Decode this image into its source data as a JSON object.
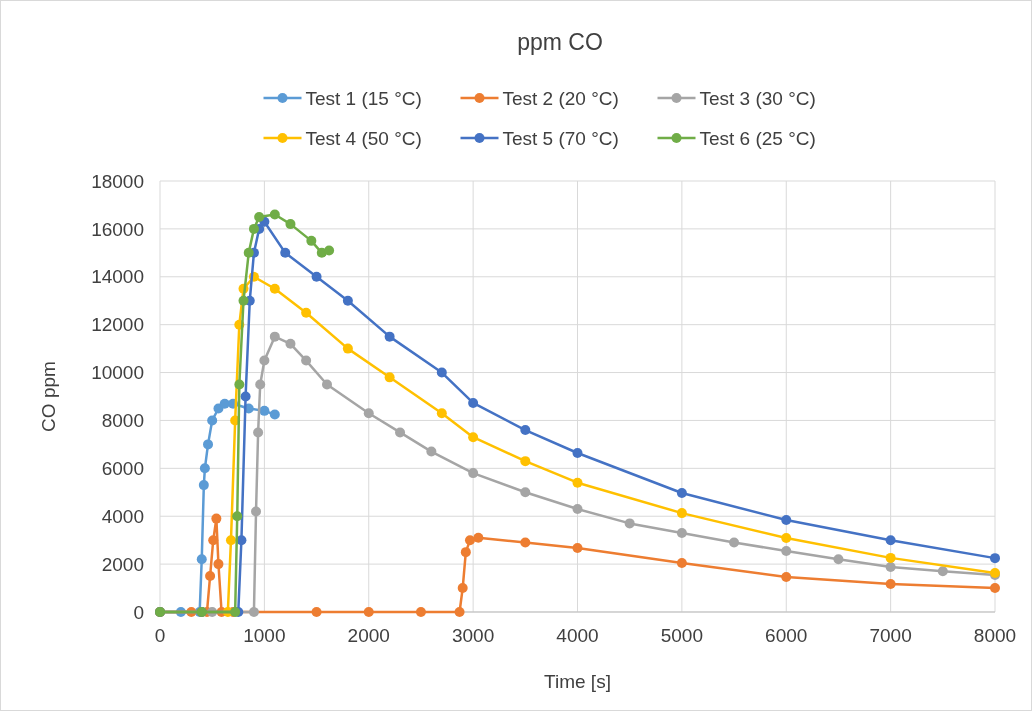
{
  "chart_data": {
    "type": "line",
    "title": "ppm CO",
    "xlabel": "Time [s]",
    "ylabel": "CO ppm",
    "xlim": [
      0,
      8000
    ],
    "xticks": [
      0,
      1000,
      2000,
      3000,
      4000,
      5000,
      6000,
      7000,
      8000
    ],
    "ylim": [
      0,
      18000
    ],
    "yticks": [
      0,
      2000,
      4000,
      6000,
      8000,
      10000,
      12000,
      14000,
      16000,
      18000
    ],
    "grid": true,
    "legend": "top",
    "marker": "circle",
    "series": [
      {
        "name": "Test 1 (15 °C)",
        "color": "#5b9bd5",
        "x": [
          0,
          200,
          380,
          400,
          420,
          430,
          460,
          500,
          560,
          620,
          700,
          850,
          1000,
          1100
        ],
        "values": [
          0,
          0,
          0,
          2200,
          5300,
          6000,
          7000,
          8000,
          8500,
          8700,
          8700,
          8500,
          8400,
          8250
        ]
      },
      {
        "name": "Test 2 (20 °C)",
        "color": "#ed7d31",
        "x": [
          0,
          300,
          450,
          480,
          510,
          540,
          560,
          590,
          700,
          1500,
          2000,
          2500,
          2870,
          2900,
          2930,
          2970,
          3050,
          3500,
          4000,
          5000,
          6000,
          7000,
          8000
        ],
        "values": [
          0,
          0,
          0,
          1500,
          3000,
          3900,
          2000,
          0,
          0,
          0,
          0,
          0,
          0,
          1000,
          2500,
          3000,
          3100,
          2900,
          2670,
          2050,
          1460,
          1170,
          1000
        ]
      },
      {
        "name": "Test 3 (30 °C)",
        "color": "#a5a5a5",
        "x": [
          0,
          500,
          900,
          920,
          940,
          960,
          1000,
          1100,
          1250,
          1400,
          1600,
          2000,
          2300,
          2600,
          3000,
          3500,
          4000,
          4500,
          5000,
          5500,
          6000,
          6500,
          7000,
          7500,
          8000
        ],
        "values": [
          0,
          0,
          0,
          4200,
          7500,
          9500,
          10500,
          11500,
          11200,
          10500,
          9500,
          8300,
          7500,
          6700,
          5800,
          5000,
          4300,
          3700,
          3300,
          2900,
          2550,
          2200,
          1880,
          1700,
          1550
        ]
      },
      {
        "name": "Test 4 (50 °C)",
        "color": "#ffc000",
        "x": [
          0,
          400,
          650,
          680,
          720,
          760,
          800,
          900,
          1100,
          1400,
          1800,
          2200,
          2700,
          3000,
          3500,
          4000,
          5000,
          6000,
          7000,
          8000
        ],
        "values": [
          0,
          0,
          0,
          3000,
          8000,
          12000,
          13500,
          14000,
          13500,
          12500,
          11000,
          9800,
          8300,
          7300,
          6300,
          5400,
          4130,
          3090,
          2260,
          1630
        ]
      },
      {
        "name": "Test 5 (70 °C)",
        "color": "#4472c4",
        "x": [
          0,
          400,
          750,
          780,
          820,
          860,
          900,
          950,
          1000,
          1200,
          1500,
          1800,
          2200,
          2700,
          3000,
          3500,
          4000,
          5000,
          6000,
          7000,
          8000
        ],
        "values": [
          0,
          0,
          0,
          3000,
          9000,
          13000,
          15000,
          16000,
          16300,
          15000,
          14000,
          13000,
          11500,
          10000,
          8730,
          7600,
          6640,
          4970,
          3840,
          3000,
          2250
        ]
      },
      {
        "name": "Test 6 (25 °C)",
        "color": "#70ad47",
        "x": [
          0,
          400,
          720,
          740,
          760,
          800,
          850,
          900,
          950,
          1100,
          1250,
          1450,
          1550,
          1620
        ],
        "values": [
          0,
          0,
          0,
          4000,
          9500,
          13000,
          15000,
          16000,
          16500,
          16600,
          16200,
          15500,
          15000,
          15100
        ]
      }
    ]
  }
}
